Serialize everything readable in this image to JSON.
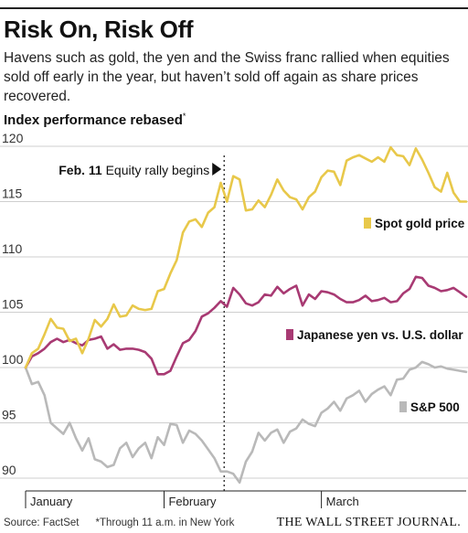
{
  "header": {
    "title": "Risk On, Risk Off",
    "subtitle": "Havens such as gold, the yen and the Swiss franc rallied when equities sold off early in the year, but haven’t sold off again as share prices recovered.",
    "chart_label": "Index performance rebased",
    "chart_label_mark": "*"
  },
  "footer": {
    "source": "Source: FactSet",
    "note": "*Through 11 a.m. in New York",
    "brand": "THE WALL STREET JOURNAL."
  },
  "chart_data": {
    "type": "line",
    "title": "Index performance rebased",
    "ylim": [
      89.5,
      121.5
    ],
    "yticks": [
      90,
      95,
      100,
      105,
      110,
      115,
      120
    ],
    "xlim": [
      0,
      70
    ],
    "months": [
      {
        "label": "January",
        "start": 0
      },
      {
        "label": "February",
        "start": 22
      },
      {
        "label": "March",
        "start": 47
      }
    ],
    "annotation": {
      "label": "Feb. 11",
      "text": "Equity rally begins",
      "x": 33
    },
    "grid": true,
    "series": [
      {
        "name": "Spot gold price",
        "color": "#e8c84a",
        "values": [
          100,
          101.3,
          101.7,
          103,
          104.4,
          103.6,
          103.5,
          102.4,
          102.6,
          101.3,
          102.6,
          104.3,
          103.7,
          104.4,
          105.7,
          104.6,
          104.7,
          105.6,
          105.3,
          105.2,
          105.3,
          106.9,
          107.1,
          108.5,
          109.7,
          112.2,
          113.2,
          113.4,
          112.7,
          114.0,
          114.5,
          116.7,
          115.0,
          117.3,
          117.0,
          114.2,
          114.3,
          115.1,
          114.5,
          115.6,
          117.0,
          116.0,
          115.4,
          115.2,
          114.3,
          115.4,
          115.9,
          117.2,
          117.8,
          117.7,
          116.5,
          118.7,
          119.0,
          119.2,
          118.9,
          118.6,
          119.0,
          118.6,
          119.9,
          119.2,
          119.1,
          118.3,
          119.8,
          118.8,
          117.6,
          116.3,
          115.9,
          117.6,
          115.8,
          115.0,
          115.0
        ],
        "legend": "Spot gold price"
      },
      {
        "name": "Japanese yen vs. U.S. dollar",
        "color": "#a83a73",
        "values": [
          100,
          101.0,
          101.3,
          101.7,
          102.3,
          102.6,
          102.3,
          102.5,
          102.2,
          102.0,
          102.5,
          102.6,
          102.8,
          101.7,
          102.1,
          101.6,
          101.7,
          101.7,
          101.6,
          101.4,
          100.8,
          99.4,
          99.4,
          99.7,
          101.0,
          102.2,
          102.5,
          103.3,
          104.6,
          104.9,
          105.4,
          106.0,
          105.5,
          107.2,
          106.6,
          105.8,
          105.6,
          105.9,
          106.6,
          106.5,
          107.3,
          106.7,
          107.1,
          107.4,
          105.6,
          106.6,
          106.2,
          106.9,
          106.8,
          106.6,
          106.2,
          105.9,
          105.9,
          106.1,
          106.5,
          106.0,
          106.1,
          106.3,
          105.9,
          106.0,
          106.7,
          107.1,
          108.2,
          108.1,
          107.4,
          107.2,
          106.9,
          107.0,
          107.2,
          106.8,
          106.4
        ],
        "legend": "Japanese yen vs. U.S. dollar"
      },
      {
        "name": "S&P 500",
        "color": "#b9b9b9",
        "values": [
          100,
          98.5,
          98.7,
          97.5,
          95.0,
          94.5,
          94.0,
          95.0,
          93.6,
          92.5,
          93.6,
          91.7,
          91.5,
          91.0,
          91.2,
          92.7,
          93.2,
          91.9,
          92.7,
          93.2,
          91.8,
          93.7,
          93.0,
          94.9,
          94.8,
          93.2,
          94.3,
          94.0,
          93.4,
          92.6,
          91.8,
          90.6,
          90.6,
          90.4,
          89.6,
          91.5,
          92.4,
          94.1,
          93.4,
          94.1,
          94.4,
          93.2,
          94.2,
          94.5,
          95.3,
          94.9,
          94.7,
          95.9,
          96.3,
          96.9,
          96.1,
          97.2,
          97.5,
          97.9,
          96.9,
          97.6,
          98.0,
          98.3,
          97.5,
          98.9,
          99.0,
          99.8,
          100.0,
          100.5,
          100.3,
          100.0,
          100.1,
          99.9,
          99.8,
          99.7,
          99.6
        ],
        "legend": "S&P 500"
      }
    ]
  }
}
